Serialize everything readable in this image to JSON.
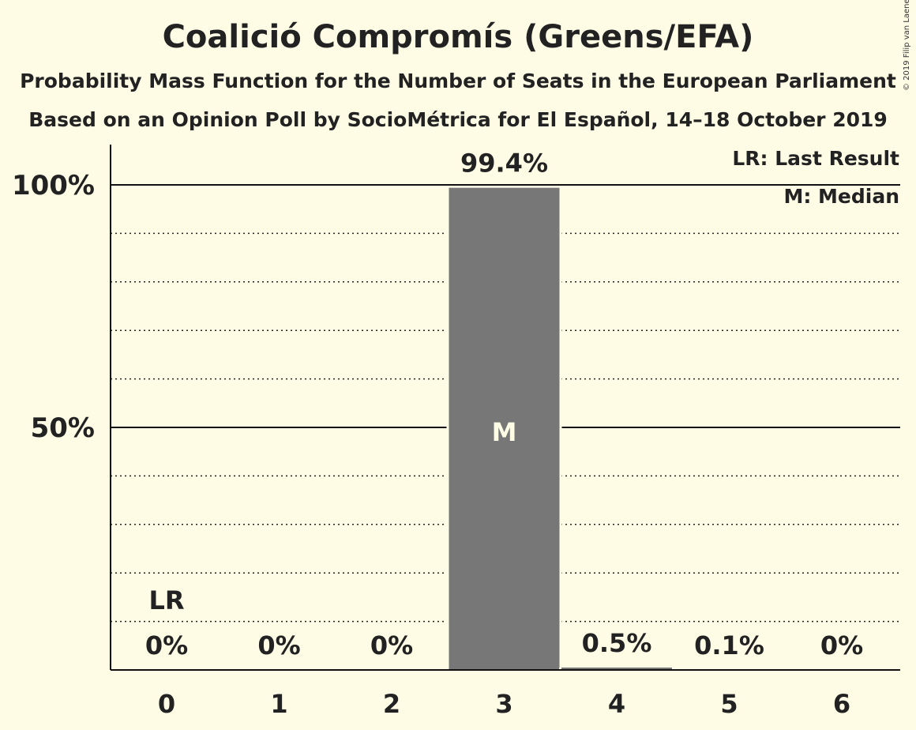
{
  "chart_data": {
    "type": "bar",
    "title": "Coalició Compromís (Greens/EFA)",
    "subtitle": "Probability Mass Function for the Number of Seats in the European Parliament",
    "subtitle2": "Based on an Opinion Poll by SocioMétrica for El Español, 14–18 October 2019",
    "copyright": "© 2019 Filip van Laenen",
    "categories": [
      "0",
      "1",
      "2",
      "3",
      "4",
      "5",
      "6"
    ],
    "values": [
      0,
      0,
      0,
      99.4,
      0.5,
      0.1,
      0
    ],
    "value_labels": [
      "0%",
      "0%",
      "0%",
      "99.4%",
      "0.5%",
      "0.1%",
      "0%"
    ],
    "ylim": [
      0,
      100
    ],
    "y_ticks": [
      {
        "value": 50,
        "label": "50%"
      },
      {
        "value": 100,
        "label": "100%"
      }
    ],
    "minor_gridlines": [
      10,
      20,
      30,
      40,
      60,
      70,
      80,
      90
    ],
    "last_result": {
      "category": "0",
      "label": "LR"
    },
    "median": {
      "category": "3",
      "label": "M"
    },
    "legend": [
      "LR: Last Result",
      "M: Median"
    ],
    "legend_position": "top-right",
    "colors": {
      "background": "#FFFCE6",
      "bar": "#777777",
      "text": "#222222",
      "median_text": "#FFFCE6"
    }
  }
}
